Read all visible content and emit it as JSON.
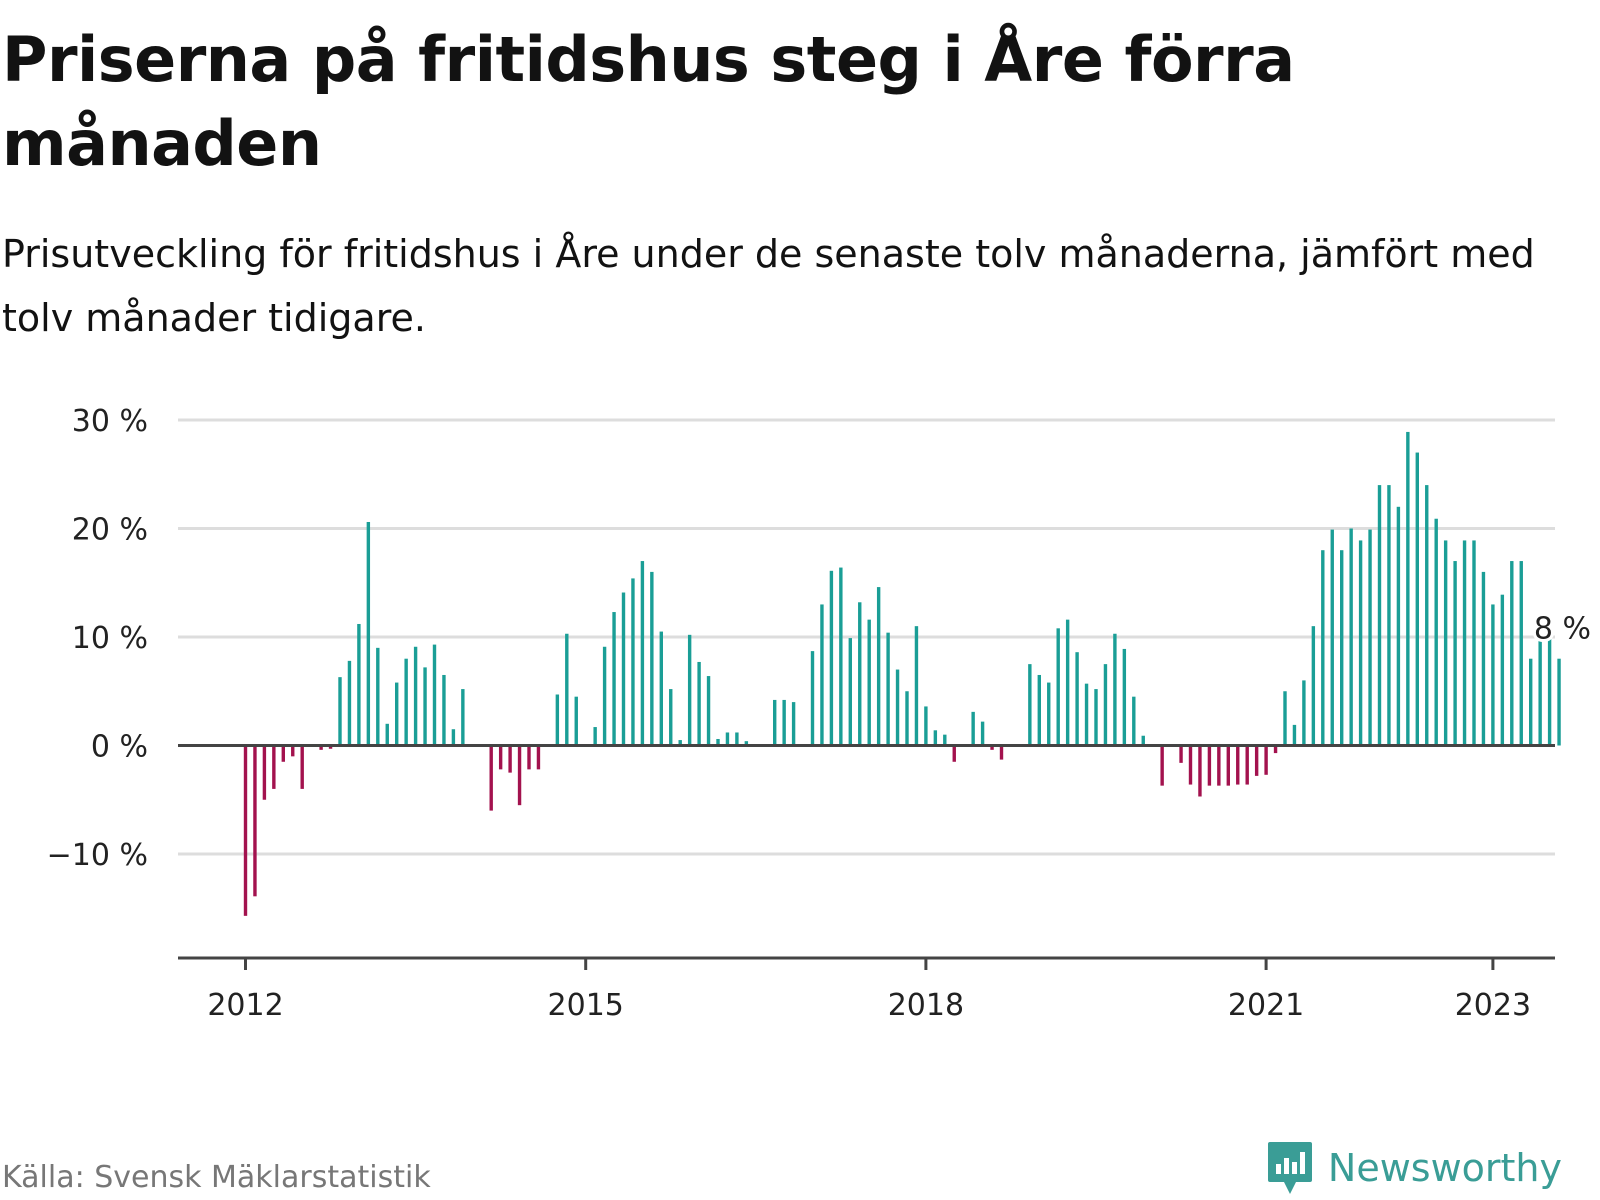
{
  "title": "Priserna på fritidshus steg i Åre förra månaden",
  "subtitle": "Prisutveckling för fritidshus i Åre under de senaste tolv månaderna, jämfört med tolv månader tidigare.",
  "source": "Källa: Svensk Mäklarstatistik",
  "brand": {
    "name": "Newsworthy",
    "icon": "newsworthy-logo-icon"
  },
  "colors": {
    "positive": "#1a9e96",
    "negative": "#a3124e",
    "grid": "#dddddd",
    "axis": "#444444"
  },
  "chart_data": {
    "type": "bar",
    "title": "Priserna på fritidshus steg i Åre förra månaden",
    "subtitle": "Prisutveckling för fritidshus i Åre under de senaste tolv månaderna, jämfört med tolv månader tidigare.",
    "xlabel": "",
    "ylabel": "",
    "unit": "%",
    "ylim": [
      -18,
      30
    ],
    "y_ticks": [
      {
        "value": 30,
        "label": "30 %"
      },
      {
        "value": 20,
        "label": "20 %"
      },
      {
        "value": 10,
        "label": "10 %"
      },
      {
        "value": 0,
        "label": "0 %"
      },
      {
        "value": -10,
        "label": "−10 %"
      }
    ],
    "x_ticks": [
      {
        "value": "2012-01",
        "label": "2012"
      },
      {
        "value": "2015-01",
        "label": "2015"
      },
      {
        "value": "2018-01",
        "label": "2018"
      },
      {
        "value": "2021-01",
        "label": "2021"
      },
      {
        "value": "2023-01",
        "label": "2023"
      }
    ],
    "start": "2012-01",
    "grid": true,
    "annotation": {
      "label": "8 %",
      "value": 8
    },
    "series": [
      {
        "values": [
          -15.7,
          -13.9,
          -5.0,
          -4.0,
          -1.5,
          -1.0,
          -4.0,
          null,
          -0.4,
          -0.3,
          6.3,
          7.8,
          11.2,
          20.6,
          9.0,
          2.0,
          5.8,
          8.0,
          9.1,
          7.2,
          9.3,
          6.5,
          1.5,
          5.2,
          null,
          null,
          -6.0,
          -2.2,
          -2.5,
          -5.5,
          -2.2,
          -2.2,
          null,
          4.7,
          10.3,
          4.5,
          null,
          1.7,
          9.1,
          12.3,
          14.1,
          15.4,
          17.0,
          16.0,
          10.5,
          5.2,
          0.5,
          10.2,
          7.7,
          6.4,
          0.6,
          1.2,
          1.2,
          0.4,
          null,
          null,
          4.2,
          4.2,
          4.0,
          null,
          8.7,
          13.0,
          16.1,
          16.4,
          9.9,
          13.2,
          11.6,
          14.6,
          10.4,
          7.0,
          5.0,
          11.0,
          3.6,
          1.4,
          1.0,
          -1.5,
          null,
          3.1,
          2.2,
          -0.4,
          -1.3,
          null,
          null,
          7.5,
          6.5,
          5.8,
          10.8,
          11.6,
          8.6,
          5.7,
          5.2,
          7.5,
          10.3,
          8.9,
          4.5,
          0.9,
          null,
          -3.7,
          null,
          -1.6,
          -3.6,
          -4.7,
          -3.7,
          -3.7,
          -3.7,
          -3.6,
          -3.6,
          -2.8,
          -2.7,
          -0.7,
          5.0,
          1.9,
          6.0,
          11.0,
          18.0,
          19.9,
          18.0,
          20.0,
          18.9,
          19.9,
          24.0,
          24.0,
          22.0,
          28.9,
          27.0,
          24.0,
          20.9,
          18.9,
          17.0,
          18.9,
          18.9,
          16.0,
          13.0,
          13.9,
          17.0,
          17.0,
          8.0,
          9.8,
          10.2,
          8.0
        ]
      }
    ]
  }
}
